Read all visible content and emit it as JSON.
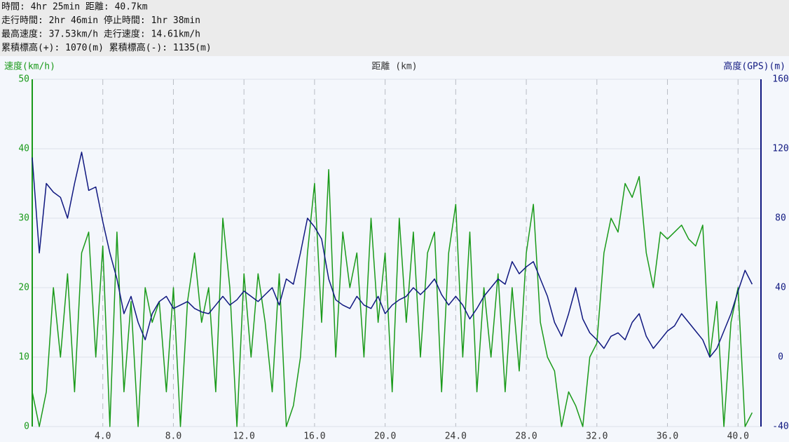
{
  "chart_data": {
    "type": "line",
    "stats": [
      "時間: 4hr 25min 距離: 40.7km",
      "走行時間: 2hr 46min 停止時間: 1hr 38min",
      "最高速度: 37.53km/h 走行速度: 14.61km/h",
      "累積標高(+): 1070(m) 累積標高(-): 1135(m)"
    ],
    "ylabel": "速度(km/h)",
    "xlabel": "距離 (km)",
    "y2label": "高度(GPS)(m)",
    "xlim": [
      0,
      41.3
    ],
    "ylim": [
      0,
      50
    ],
    "y2lim": [
      -40,
      160
    ],
    "xticks": [
      {
        "value": 4,
        "label": "4.0"
      },
      {
        "value": 8,
        "label": "8.0"
      },
      {
        "value": 12,
        "label": "12.0"
      },
      {
        "value": 16,
        "label": "16.0"
      },
      {
        "value": 20,
        "label": "20.0"
      },
      {
        "value": 24,
        "label": "24.0"
      },
      {
        "value": 28,
        "label": "28.0"
      },
      {
        "value": 32,
        "label": "32.0"
      },
      {
        "value": 36,
        "label": "36.0"
      },
      {
        "value": 40,
        "label": "40.0"
      }
    ],
    "yticks": [
      0,
      10,
      20,
      30,
      40,
      50
    ],
    "y2ticks": [
      -40,
      0,
      40,
      80,
      120,
      160
    ],
    "grid": true,
    "x": [
      0,
      0.4,
      0.8,
      1.2,
      1.6,
      2.0,
      2.4,
      2.8,
      3.2,
      3.6,
      4.0,
      4.4,
      4.8,
      5.2,
      5.6,
      6.0,
      6.4,
      6.8,
      7.2,
      7.6,
      8.0,
      8.4,
      8.8,
      9.2,
      9.6,
      10.0,
      10.4,
      10.8,
      11.2,
      11.6,
      12.0,
      12.4,
      12.8,
      13.2,
      13.6,
      14.0,
      14.4,
      14.8,
      15.2,
      15.6,
      16.0,
      16.4,
      16.8,
      17.2,
      17.6,
      18.0,
      18.4,
      18.8,
      19.2,
      19.6,
      20.0,
      20.4,
      20.8,
      21.2,
      21.6,
      22.0,
      22.4,
      22.8,
      23.2,
      23.6,
      24.0,
      24.4,
      24.8,
      25.2,
      25.6,
      26.0,
      26.4,
      26.8,
      27.2,
      27.6,
      28.0,
      28.4,
      28.8,
      29.2,
      29.6,
      30.0,
      30.4,
      30.8,
      31.2,
      31.6,
      32.0,
      32.4,
      32.8,
      33.2,
      33.6,
      34.0,
      34.4,
      34.8,
      35.2,
      35.6,
      36.0,
      36.4,
      36.8,
      37.2,
      37.6,
      38.0,
      38.4,
      38.8,
      39.2,
      39.6,
      40.0,
      40.4,
      40.8
    ],
    "series": [
      {
        "name": "速度",
        "color": "#1a9a1a",
        "axis": "y",
        "values": [
          5,
          0,
          5,
          20,
          10,
          22,
          5,
          25,
          28,
          10,
          26,
          0,
          28,
          5,
          18,
          0,
          20,
          15,
          18,
          5,
          20,
          0,
          18,
          25,
          15,
          20,
          5,
          30,
          20,
          0,
          22,
          10,
          22,
          15,
          5,
          22,
          0,
          3,
          10,
          25,
          35,
          15,
          37,
          10,
          28,
          20,
          25,
          10,
          30,
          15,
          25,
          5,
          30,
          15,
          28,
          10,
          25,
          28,
          5,
          25,
          32,
          10,
          28,
          5,
          20,
          10,
          22,
          5,
          20,
          8,
          25,
          32,
          15,
          10,
          8,
          0,
          5,
          3,
          0,
          10,
          12,
          25,
          30,
          28,
          35,
          33,
          36,
          25,
          20,
          28,
          27,
          28,
          29,
          27,
          26,
          29,
          10,
          18,
          0,
          15,
          20,
          0,
          2
        ]
      },
      {
        "name": "高度",
        "color": "#101880",
        "axis": "y2",
        "values": [
          115,
          60,
          100,
          95,
          92,
          80,
          100,
          118,
          96,
          98,
          78,
          60,
          45,
          25,
          35,
          20,
          10,
          25,
          32,
          35,
          28,
          30,
          32,
          28,
          26,
          25,
          30,
          35,
          30,
          33,
          38,
          35,
          32,
          36,
          40,
          30,
          45,
          42,
          60,
          80,
          75,
          68,
          45,
          33,
          30,
          28,
          35,
          30,
          28,
          35,
          25,
          30,
          33,
          35,
          40,
          36,
          40,
          45,
          36,
          30,
          35,
          30,
          22,
          28,
          35,
          40,
          45,
          42,
          55,
          48,
          52,
          55,
          45,
          35,
          20,
          12,
          25,
          40,
          22,
          14,
          10,
          5,
          12,
          14,
          10,
          20,
          25,
          12,
          5,
          10,
          15,
          18,
          25,
          20,
          15,
          10,
          0,
          5,
          15,
          25,
          38,
          50,
          42
        ]
      }
    ]
  }
}
